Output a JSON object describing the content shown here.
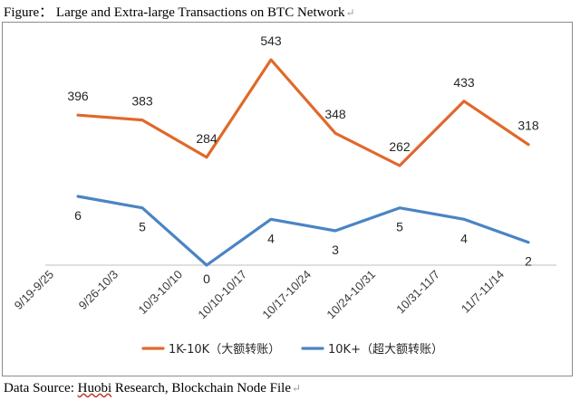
{
  "figure": {
    "title": "Figure： Large and Extra-large Transactions on BTC Network",
    "paragraph_mark": "↵"
  },
  "source": {
    "prefix": "Data Source: ",
    "highlighted": "Huobi",
    "suffix": " Research, Blockchain Node File",
    "paragraph_mark": "↵"
  },
  "colors": {
    "series_1": "#E0692A",
    "series_2": "#4A84C4",
    "axis": "#bfbfbf"
  },
  "chart_data": {
    "type": "line",
    "title": "",
    "xlabel": "",
    "ylabel": "",
    "grid": false,
    "legend_position": "bottom",
    "categories": [
      "9/19-9/25",
      "9/26-10/3",
      "10/3-10/10",
      "10/10-10/17",
      "10/17-10/24",
      "10/24-10/31",
      "10/31-11/7",
      "11/7-11/14"
    ],
    "series": [
      {
        "name": "1K-10K（大额转账）",
        "color": "#E0692A",
        "values": [
          396,
          383,
          284,
          543,
          348,
          262,
          433,
          318
        ],
        "labels": [
          "396",
          "383",
          "284",
          "543",
          "348",
          "262",
          "433",
          "318"
        ]
      },
      {
        "name": "10K+（超大额转账）",
        "color": "#4A84C4",
        "values": [
          6,
          5,
          0,
          4,
          3,
          5,
          4,
          2
        ],
        "labels": [
          "6",
          "5",
          "0",
          "4",
          "3",
          "5",
          "4",
          "2"
        ]
      }
    ]
  }
}
